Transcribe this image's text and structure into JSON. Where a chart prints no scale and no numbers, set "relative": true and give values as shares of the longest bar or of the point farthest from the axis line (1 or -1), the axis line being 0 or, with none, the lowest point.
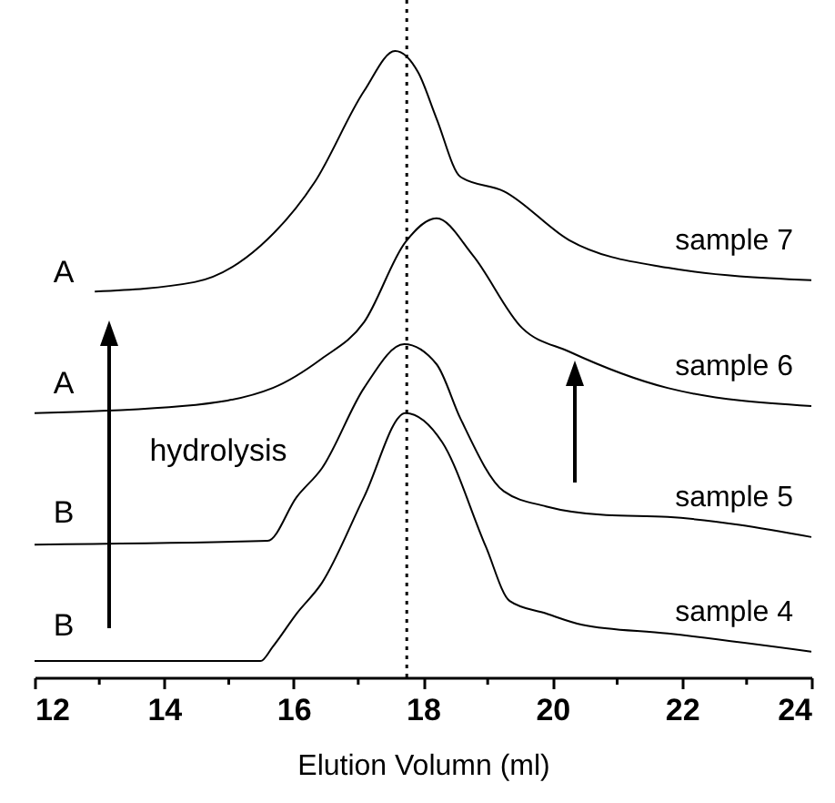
{
  "chart_data": {
    "type": "line",
    "relative": true,
    "xlabel": "Elution Volumn (ml)",
    "xlim": [
      12,
      24
    ],
    "xticks": [
      12,
      {
        "value": 13,
        "label": null
      },
      14,
      {
        "value": 15,
        "label": null
      },
      16,
      {
        "value": 17,
        "label": null
      },
      18,
      {
        "value": 19,
        "label": null
      },
      20,
      {
        "value": 21,
        "label": null
      },
      22,
      {
        "value": 23,
        "label": null
      },
      24
    ],
    "series": [
      {
        "name": "sample 7",
        "color": "#000000",
        "x": [
          12.93,
          14.47,
          15.49,
          16.33,
          17.09,
          17.57,
          17.93,
          18.21,
          18.58,
          19.25,
          20.26,
          21.78,
          24
        ],
        "values": [
          0.616,
          0.631,
          0.689,
          0.791,
          0.936,
          1,
          0.965,
          0.892,
          0.799,
          0.776,
          0.698,
          0.654,
          0.634
        ]
      },
      {
        "name": "sample 6",
        "color": "#000000",
        "x": [
          12,
          14.28,
          15.68,
          16.44,
          17.09,
          17.73,
          18.21,
          18.77,
          19.53,
          20.26,
          21.78,
          24
        ],
        "values": [
          0.422,
          0.433,
          0.462,
          0.509,
          0.567,
          0.695,
          0.733,
          0.674,
          0.558,
          0.52,
          0.462,
          0.433
        ]
      },
      {
        "name": "sample 5",
        "color": "#000000",
        "x": [
          12,
          15.6,
          16.05,
          16.44,
          17.09,
          17.71,
          18.21,
          18.58,
          19.25,
          19.9,
          20.83,
          21.78,
          24
        ],
        "values": [
          0.212,
          0.218,
          0.288,
          0.334,
          0.462,
          0.532,
          0.5,
          0.413,
          0.297,
          0.273,
          0.259,
          0.256,
          0.224
        ]
      },
      {
        "name": "sample 4",
        "color": "#000000",
        "x": [
          12,
          15.49,
          15.68,
          16.05,
          16.44,
          17.09,
          17.73,
          18.3,
          18.97,
          19.34,
          19.9,
          20.46,
          21.78,
          24
        ],
        "values": [
          0.026,
          0.026,
          0.049,
          0.102,
          0.151,
          0.288,
          0.422,
          0.375,
          0.209,
          0.122,
          0.102,
          0.084,
          0.07,
          0.041
        ]
      }
    ],
    "ref_lines": [
      {
        "axis": "x",
        "value": 17.75,
        "line_style": "dotted",
        "color": "#000000"
      }
    ],
    "annotations": [
      "A",
      "A",
      "B",
      "B",
      "hydrolysis"
    ],
    "legend": false,
    "marker": "none",
    "line_style": "solid",
    "grid": false
  }
}
